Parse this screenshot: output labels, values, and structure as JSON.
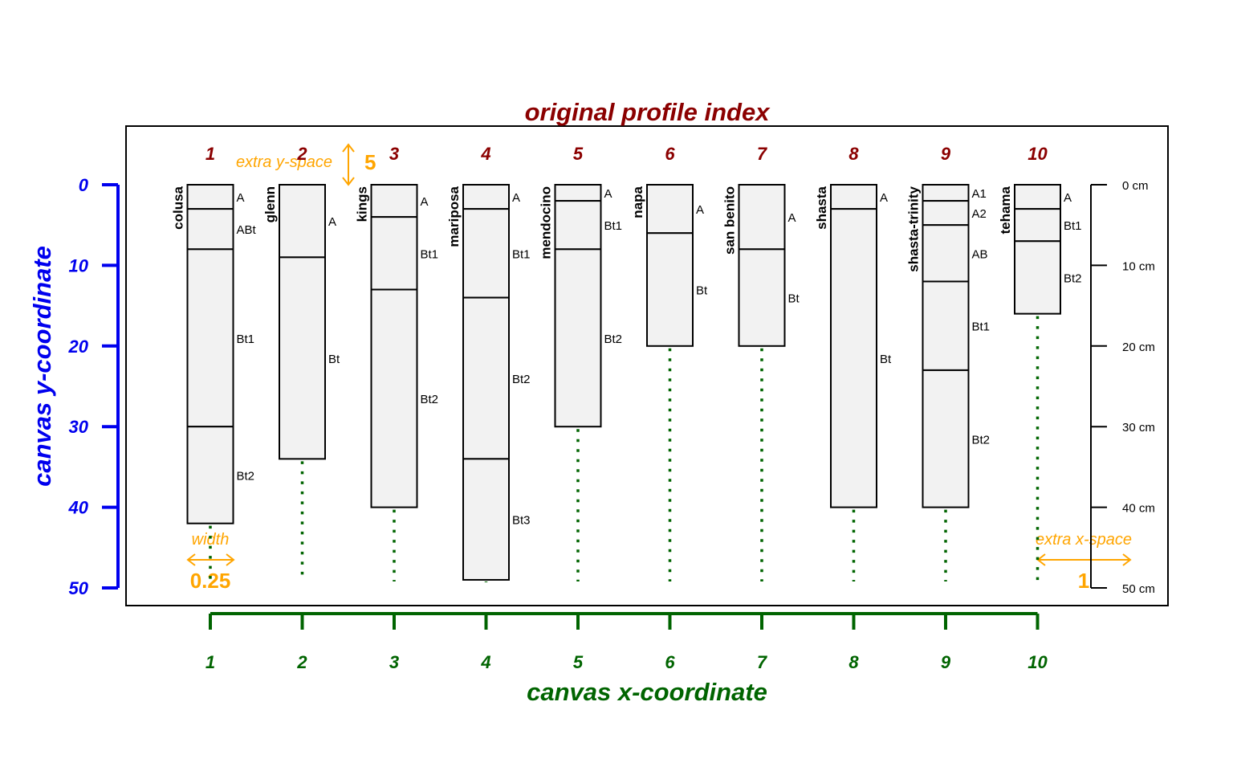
{
  "chart_data": {
    "type": "diagram",
    "title": "original profile index",
    "xlabel": "canvas x-coordinate",
    "ylabel": "canvas y-coordinate",
    "x_ticks": [
      "1",
      "2",
      "3",
      "4",
      "5",
      "6",
      "7",
      "8",
      "9",
      "10"
    ],
    "y_ticks": [
      "0",
      "10",
      "20",
      "30",
      "40",
      "50"
    ],
    "ylim": [
      0,
      50
    ],
    "depth_ticks": [
      "0 cm",
      "10 cm",
      "20 cm",
      "30 cm",
      "40 cm",
      "50 cm"
    ],
    "annotations": {
      "extra_y_space_label": "extra y-space",
      "extra_y_space_value": "5",
      "width_label": "width",
      "width_value": "0.25",
      "extra_x_space_label": "extra x-space",
      "extra_x_space_value": "1"
    },
    "profiles": [
      {
        "index": "1",
        "name": "colusa",
        "bottom": 42,
        "horizons": [
          {
            "name": "A",
            "top": 0,
            "bottom": 3
          },
          {
            "name": "ABt",
            "top": 3,
            "bottom": 8
          },
          {
            "name": "Bt1",
            "top": 8,
            "bottom": 30
          },
          {
            "name": "Bt2",
            "top": 30,
            "bottom": 42
          }
        ]
      },
      {
        "index": "2",
        "name": "glenn",
        "bottom": 34,
        "horizons": [
          {
            "name": "A",
            "top": 0,
            "bottom": 9
          },
          {
            "name": "Bt",
            "top": 9,
            "bottom": 34
          }
        ]
      },
      {
        "index": "3",
        "name": "kings",
        "bottom": 40,
        "horizons": [
          {
            "name": "A",
            "top": 0,
            "bottom": 4
          },
          {
            "name": "Bt1",
            "top": 4,
            "bottom": 13
          },
          {
            "name": "Bt2",
            "top": 13,
            "bottom": 40
          }
        ]
      },
      {
        "index": "4",
        "name": "mariposa",
        "bottom": 49,
        "horizons": [
          {
            "name": "A",
            "top": 0,
            "bottom": 3
          },
          {
            "name": "Bt1",
            "top": 3,
            "bottom": 14
          },
          {
            "name": "Bt2",
            "top": 14,
            "bottom": 34
          },
          {
            "name": "Bt3",
            "top": 34,
            "bottom": 49
          }
        ]
      },
      {
        "index": "5",
        "name": "mendocino",
        "bottom": 30,
        "horizons": [
          {
            "name": "A",
            "top": 0,
            "bottom": 2
          },
          {
            "name": "Bt1",
            "top": 2,
            "bottom": 8
          },
          {
            "name": "Bt2",
            "top": 8,
            "bottom": 30
          }
        ]
      },
      {
        "index": "6",
        "name": "napa",
        "bottom": 20,
        "horizons": [
          {
            "name": "A",
            "top": 0,
            "bottom": 6
          },
          {
            "name": "Bt",
            "top": 6,
            "bottom": 20
          }
        ]
      },
      {
        "index": "7",
        "name": "san benito",
        "bottom": 20,
        "horizons": [
          {
            "name": "A",
            "top": 0,
            "bottom": 8
          },
          {
            "name": "Bt",
            "top": 8,
            "bottom": 20
          }
        ]
      },
      {
        "index": "8",
        "name": "shasta",
        "bottom": 40,
        "horizons": [
          {
            "name": "A",
            "top": 0,
            "bottom": 3
          },
          {
            "name": "Bt",
            "top": 3,
            "bottom": 40
          }
        ]
      },
      {
        "index": "9",
        "name": "shasta-trinity",
        "bottom": 40,
        "horizons": [
          {
            "name": "A1",
            "top": 0,
            "bottom": 2
          },
          {
            "name": "A2",
            "top": 2,
            "bottom": 5
          },
          {
            "name": "AB",
            "top": 5,
            "bottom": 12
          },
          {
            "name": "Bt1",
            "top": 12,
            "bottom": 23
          },
          {
            "name": "Bt2",
            "top": 23,
            "bottom": 40
          }
        ]
      },
      {
        "index": "10",
        "name": "tehama",
        "bottom": 16,
        "horizons": [
          {
            "name": "A",
            "top": 0,
            "bottom": 3
          },
          {
            "name": "Bt1",
            "top": 3,
            "bottom": 7
          },
          {
            "name": "Bt2",
            "top": 7,
            "bottom": 16
          }
        ]
      }
    ]
  },
  "colors": {
    "index": "#8b0000",
    "y_axis": "#0000ee",
    "x_axis": "#006400",
    "annotation": "#ffa500",
    "horizon_fill": "#f2f2f2"
  }
}
